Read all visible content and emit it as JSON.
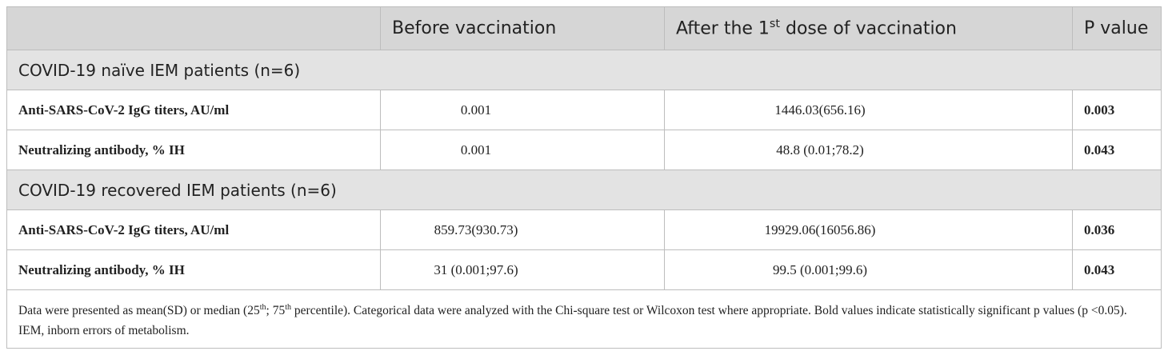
{
  "table": {
    "header": [
      "Before vaccination",
      [
        "After the 1",
        "st",
        " dose of vaccination"
      ],
      "P value"
    ],
    "sections": [
      {
        "title": "COVID-19 naïve IEM patients (n=6)",
        "rows": [
          [
            "Anti-SARS-CoV-2 IgG titers, AU/ml",
            "0.001",
            "1446.03(656.16)",
            "0.003"
          ],
          [
            "Neutralizing antibody, % IH",
            "0.001",
            "48.8 (0.01;78.2)",
            "0.043"
          ]
        ]
      },
      {
        "title": "COVID-19 recovered IEM patients (n=6)",
        "rows": [
          [
            "Anti-SARS-CoV-2 IgG titers, AU/ml",
            "859.73(930.73)",
            "19929.06(16056.86)",
            "0.036"
          ],
          [
            "Neutralizing antibody, % IH",
            "31 (0.001;97.6)",
            "99.5 (0.001;99.6)",
            "0.043"
          ]
        ]
      }
    ],
    "footnote": [
      "Data were presented as mean(SD) or median (25",
      "th",
      "; 75",
      "th",
      " percentile). Categorical data were analyzed with the Chi-square test or Wilcoxon test where appropriate. Bold values indicate statistically significant p values (p <0.05). IEM, inborn errors of metabolism."
    ]
  }
}
